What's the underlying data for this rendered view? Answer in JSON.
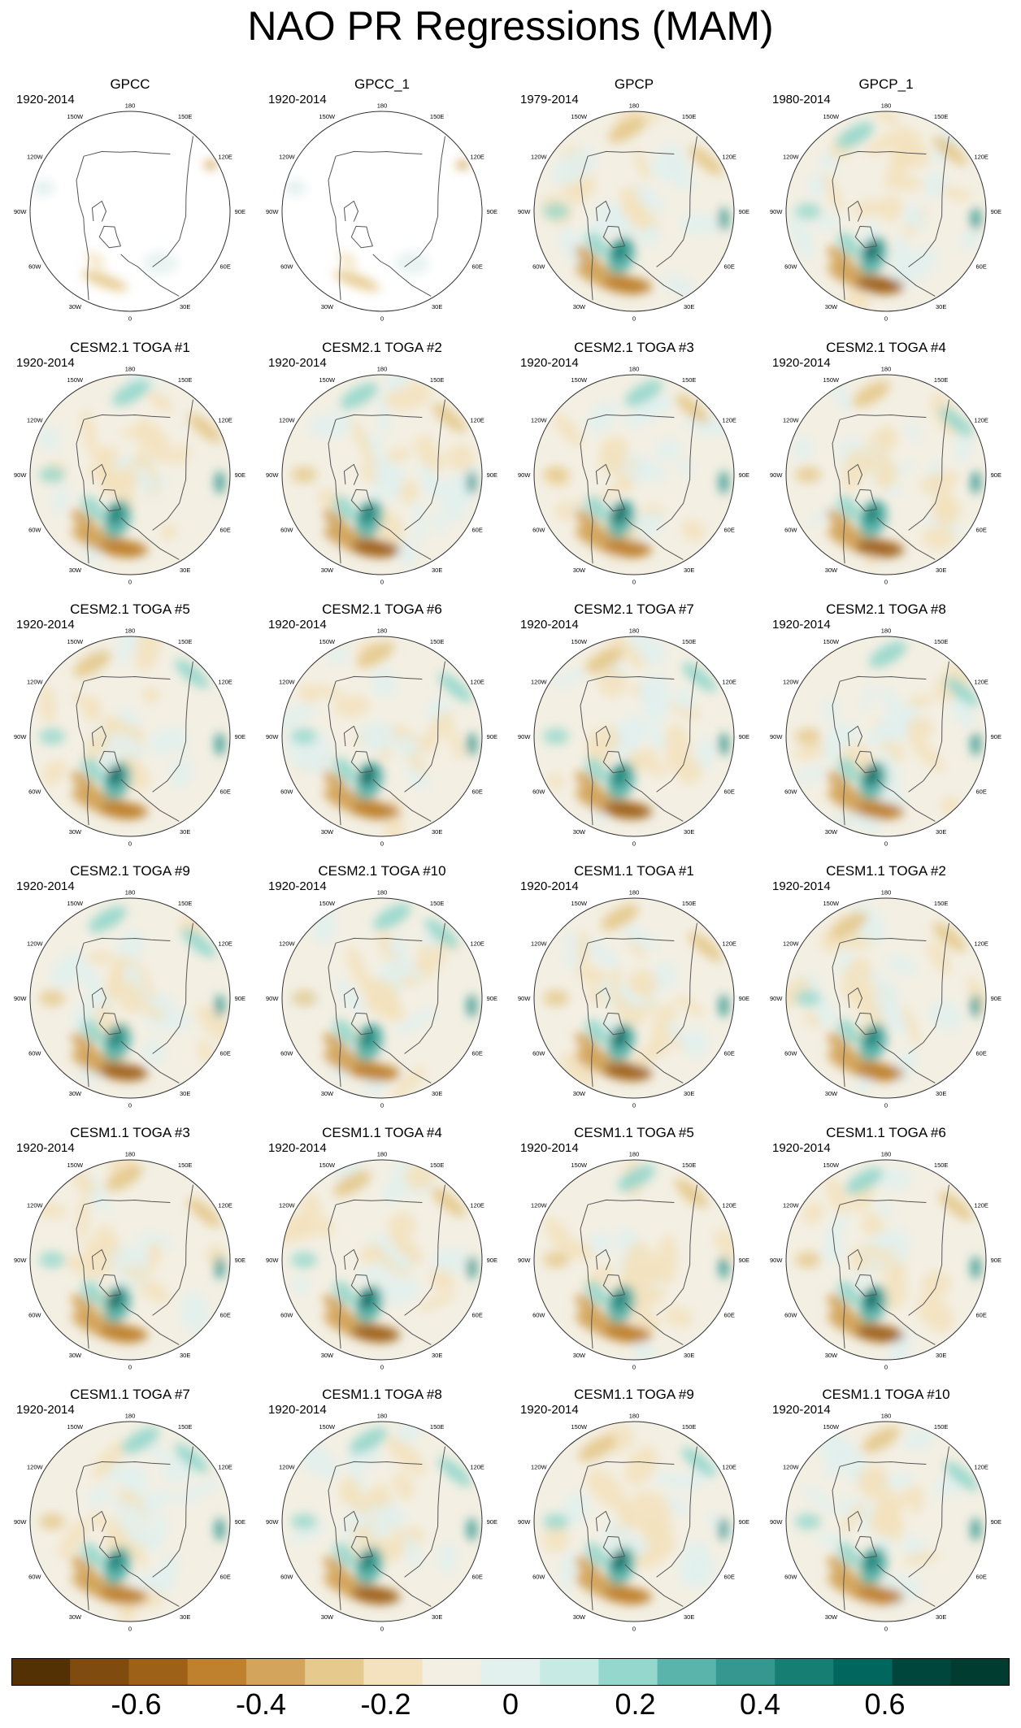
{
  "title": "NAO PR Regressions (MAM)",
  "map_labels": {
    "top": "180",
    "bottom": "0",
    "left_upper": "120W",
    "left_mid": "90W",
    "left_lower": "60W",
    "right_upper": "120E",
    "right_mid": "90E",
    "right_lower": "60E",
    "upper_left": "150W",
    "upper_right": "150E",
    "lower_left": "30W",
    "lower_right": "30E"
  },
  "chart_data": {
    "type": "heatmap",
    "projection": "north polar stereographic",
    "colorbar": {
      "colors": [
        "#543005",
        "#7f4b0f",
        "#9e6118",
        "#bf812d",
        "#d3a45b",
        "#e6c98c",
        "#f3e2bd",
        "#f3efe3",
        "#e2f0ee",
        "#c7eae5",
        "#95d7cc",
        "#5ab4ac",
        "#35978f",
        "#177e73",
        "#01665e",
        "#00463c",
        "#003c30"
      ],
      "tick_labels": [
        "-0.6",
        "-0.4",
        "-0.2",
        "0",
        "0.2",
        "0.4",
        "0.6"
      ],
      "tick_values": [
        -0.6,
        -0.4,
        -0.2,
        0,
        0.2,
        0.4,
        0.6
      ]
    },
    "panels": [
      {
        "title": "GPCC",
        "period": "1920-2014",
        "masked": true
      },
      {
        "title": "GPCC_1",
        "period": "1920-2014",
        "masked": true
      },
      {
        "title": "GPCP",
        "period": "1979-2014",
        "masked": false
      },
      {
        "title": "GPCP_1",
        "period": "1980-2014",
        "masked": false
      },
      {
        "title": "CESM2.1 TOGA #1",
        "period": "1920-2014"
      },
      {
        "title": "CESM2.1 TOGA #2",
        "period": "1920-2014"
      },
      {
        "title": "CESM2.1 TOGA #3",
        "period": "1920-2014"
      },
      {
        "title": "CESM2.1 TOGA #4",
        "period": "1920-2014"
      },
      {
        "title": "CESM2.1 TOGA #5",
        "period": "1920-2014"
      },
      {
        "title": "CESM2.1 TOGA #6",
        "period": "1920-2014"
      },
      {
        "title": "CESM2.1 TOGA #7",
        "period": "1920-2014"
      },
      {
        "title": "CESM2.1 TOGA #8",
        "period": "1920-2014"
      },
      {
        "title": "CESM2.1 TOGA #9",
        "period": "1920-2014"
      },
      {
        "title": "CESM2.1 TOGA #10",
        "period": "1920-2014"
      },
      {
        "title": "CESM1.1 TOGA #1",
        "period": "1920-2014"
      },
      {
        "title": "CESM1.1 TOGA #2",
        "period": "1920-2014"
      },
      {
        "title": "CESM1.1 TOGA #3",
        "period": "1920-2014"
      },
      {
        "title": "CESM1.1 TOGA #4",
        "period": "1920-2014"
      },
      {
        "title": "CESM1.1 TOGA #5",
        "period": "1920-2014"
      },
      {
        "title": "CESM1.1 TOGA #6",
        "period": "1920-2014"
      },
      {
        "title": "CESM1.1 TOGA #7",
        "period": "1920-2014"
      },
      {
        "title": "CESM1.1 TOGA #8",
        "period": "1920-2014"
      },
      {
        "title": "CESM1.1 TOGA #9",
        "period": "1920-2014"
      },
      {
        "title": "CESM1.1 TOGA #10",
        "period": "1920-2014"
      }
    ]
  }
}
